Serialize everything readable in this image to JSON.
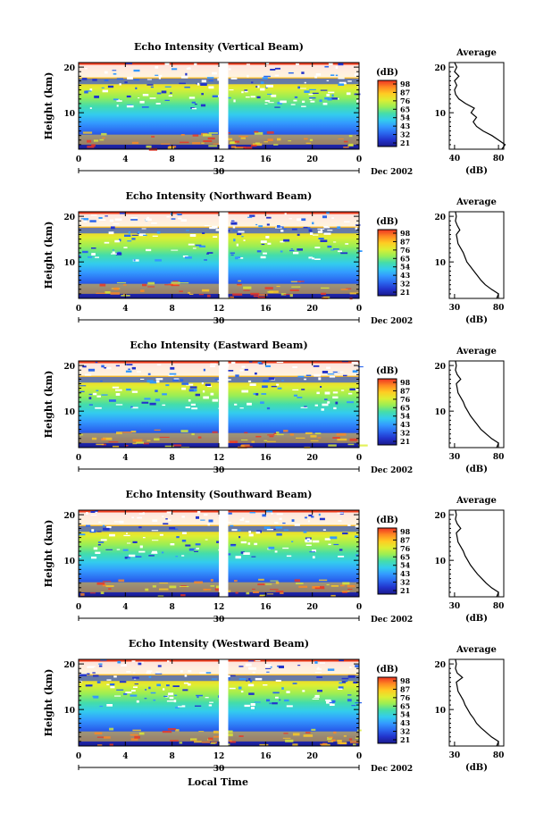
{
  "figure": {
    "x_axis_label": "Local Time",
    "x_ticks": [
      "0",
      "4",
      "8",
      "12",
      "16",
      "20",
      "0"
    ],
    "date_day": "30",
    "date_month_year": "Dec 2002",
    "y_axis_label": "Height (km)",
    "y_ticks": [
      "20",
      "10"
    ],
    "colorbar_unit": "(dB)",
    "avg_title": "Average",
    "avg_unit": "(dB)",
    "colormap": [
      "#1a1a8c",
      "#2233cc",
      "#2a66ee",
      "#3399ff",
      "#33ccee",
      "#44ddaa",
      "#99ee55",
      "#ddee33",
      "#ffcc22",
      "#ff8822",
      "#ee3322"
    ]
  },
  "chart_data": [
    {
      "type": "heatmap",
      "title": "Echo Intensity (Vertical Beam)",
      "xlabel": "",
      "ylabel": "Height (km)",
      "colorbar_labels": [
        "98",
        "87",
        "76",
        "65",
        "54",
        "43",
        "32",
        "21"
      ],
      "avg_xticks": [
        "40",
        "80"
      ],
      "avg_profile": {
        "x": [
          83,
          86,
          80,
          74,
          66,
          60,
          57,
          60,
          55,
          58,
          50,
          44,
          41,
          40,
          42,
          40,
          44,
          40,
          42,
          40
        ],
        "y": [
          2,
          3,
          4,
          5,
          6,
          7,
          8,
          9,
          10,
          11,
          12,
          13,
          14,
          15,
          16,
          17,
          18,
          19,
          20,
          21
        ]
      }
    },
    {
      "type": "heatmap",
      "title": "Echo Intensity (Northward Beam)",
      "xlabel": "",
      "ylabel": "Height (km)",
      "colorbar_labels": [
        "98",
        "87",
        "76",
        "65",
        "54",
        "43",
        "32",
        "21"
      ],
      "avg_xticks": [
        "30",
        "80"
      ],
      "avg_profile": {
        "x": [
          78,
          80,
          72,
          65,
          60,
          56,
          52,
          48,
          44,
          42,
          40,
          37,
          34,
          33,
          32,
          36,
          33,
          31,
          32,
          31
        ],
        "y": [
          2,
          3,
          4,
          5,
          6,
          7,
          8,
          9,
          10,
          11,
          12,
          13,
          14,
          15,
          16,
          17,
          18,
          19,
          20,
          21
        ]
      }
    },
    {
      "type": "heatmap",
      "title": "Echo Intensity (Eastward Beam)",
      "xlabel": "",
      "ylabel": "Height (km)",
      "colorbar_labels": [
        "98",
        "87",
        "76",
        "65",
        "54",
        "43",
        "32",
        "21"
      ],
      "avg_xticks": [
        "30",
        "80"
      ],
      "avg_profile": {
        "x": [
          78,
          80,
          72,
          66,
          60,
          56,
          52,
          48,
          45,
          42,
          40,
          37,
          34,
          33,
          32,
          37,
          33,
          31,
          32,
          31
        ],
        "y": [
          2,
          3,
          4,
          5,
          6,
          7,
          8,
          9,
          10,
          11,
          12,
          13,
          14,
          15,
          16,
          17,
          18,
          19,
          20,
          21
        ]
      }
    },
    {
      "type": "heatmap",
      "title": "Echo Intensity (Southward Beam)",
      "xlabel": "",
      "ylabel": "Height (km)",
      "colorbar_labels": [
        "98",
        "87",
        "76",
        "65",
        "54",
        "43",
        "32",
        "21"
      ],
      "avg_xticks": [
        "30",
        "80"
      ],
      "avg_profile": {
        "x": [
          78,
          80,
          72,
          66,
          61,
          56,
          52,
          48,
          45,
          42,
          40,
          37,
          34,
          33,
          32,
          37,
          33,
          31,
          32,
          31
        ],
        "y": [
          2,
          3,
          4,
          5,
          6,
          7,
          8,
          9,
          10,
          11,
          12,
          13,
          14,
          15,
          16,
          17,
          18,
          19,
          20,
          21
        ]
      }
    },
    {
      "type": "heatmap",
      "title": "Echo Intensity (Westward Beam)",
      "xlabel": "Local Time",
      "ylabel": "Height (km)",
      "colorbar_labels": [
        "98",
        "87",
        "76",
        "65",
        "54",
        "43",
        "32",
        "21"
      ],
      "avg_xticks": [
        "30",
        "80"
      ],
      "avg_profile": {
        "x": [
          78,
          80,
          72,
          66,
          60,
          55,
          52,
          48,
          45,
          42,
          40,
          37,
          34,
          33,
          32,
          39,
          33,
          31,
          32,
          31
        ],
        "y": [
          2,
          3,
          4,
          5,
          6,
          7,
          8,
          9,
          10,
          11,
          12,
          13,
          14,
          15,
          16,
          17,
          18,
          19,
          20,
          21
        ]
      }
    }
  ]
}
